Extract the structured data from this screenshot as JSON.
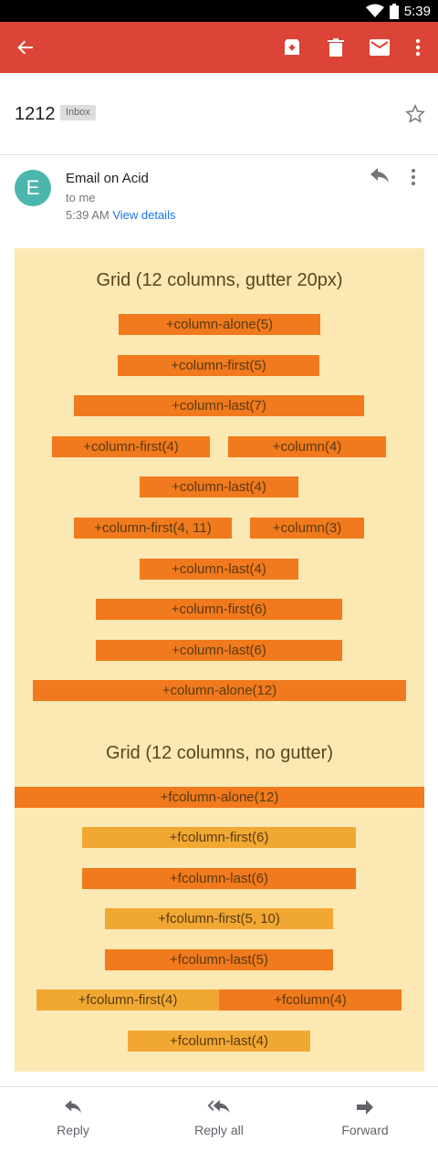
{
  "status_bar": {
    "time": "5:39"
  },
  "app_bar": {
    "back_icon": "arrow-left-icon",
    "actions": [
      "archive-icon",
      "delete-icon",
      "mail-icon",
      "more-vert-icon"
    ],
    "color": "#db4437"
  },
  "subject": {
    "title": "1212",
    "label": "Inbox"
  },
  "sender": {
    "avatar_letter": "E",
    "name": "Email on Acid",
    "to": "to me",
    "time": "5:39 AM",
    "view_details": "View details"
  },
  "body": {
    "grid1_title": "Grid (12 columns, gutter 20px)",
    "grid1": [
      "+column-alone(5)",
      "+column-first(5)",
      "+column-last(7)",
      "+column-first(4)",
      "+column(4)",
      "+column-last(4)",
      "+column-first(4, 11)",
      "+column(3)",
      "+column-last(4)",
      "+column-first(6)",
      "+column-last(6)",
      "+column-alone(12)"
    ],
    "grid2_title": "Grid (12 columns, no gutter)",
    "grid2": [
      "+fcolumn-alone(12)",
      "+fcolumn-first(6)",
      "+fcolumn-last(6)",
      "+fcolumn-first(5, 10)",
      "+fcolumn-last(5)",
      "+fcolumn-first(4)",
      "+fcolumn(4)",
      "+fcolumn-last(4)"
    ],
    "colors": {
      "background": "#fce8b2",
      "dark_bar": "#f07a1d",
      "light_bar": "#f1a833"
    }
  },
  "bottom_actions": {
    "reply": "Reply",
    "reply_all": "Reply all",
    "forward": "Forward"
  }
}
